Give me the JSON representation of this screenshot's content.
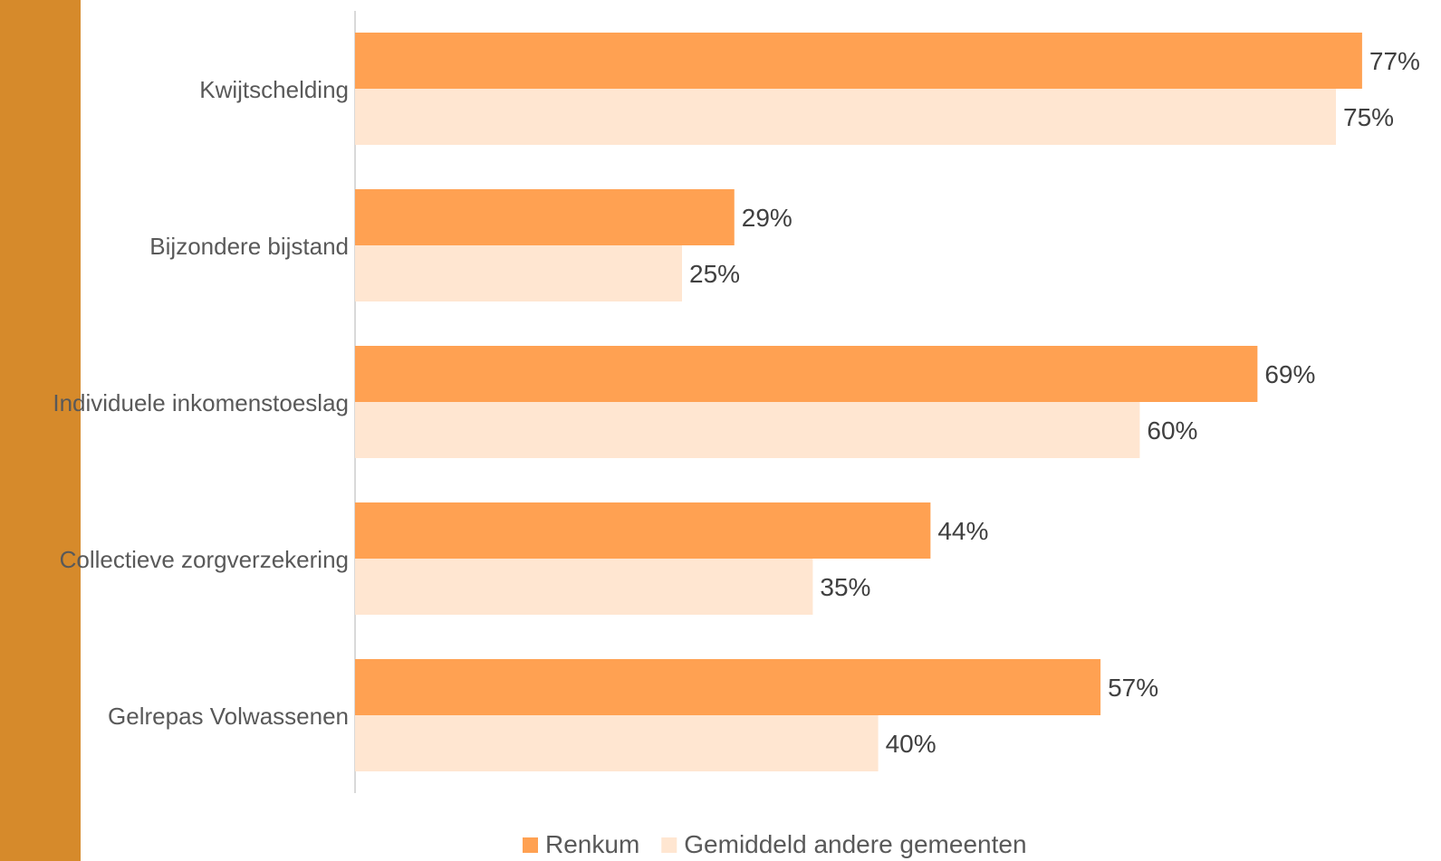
{
  "chart_data": {
    "type": "bar",
    "orientation": "horizontal",
    "categories": [
      "Kwijtschelding",
      "Bijzondere bijstand",
      "Individuele inkomenstoeslag",
      "Collectieve zorgverzekering",
      "Gelrepas Volwassenen"
    ],
    "series": [
      {
        "name": "Renkum",
        "values": [
          77,
          29,
          69,
          44,
          57
        ],
        "labels": [
          "77%",
          "29%",
          "69%",
          "44%",
          "57%"
        ],
        "color": "#FFA152"
      },
      {
        "name": "Gemiddeld andere gemeenten",
        "values": [
          75,
          25,
          60,
          35,
          40
        ],
        "labels": [
          "75%",
          "25%",
          "60%",
          "35%",
          "40%"
        ],
        "color": "#FFE6D1"
      }
    ],
    "xlim": [
      0,
      77
    ],
    "grid": false,
    "legend": "bottom"
  },
  "colors": {
    "side_bar": "#D68A2B",
    "axis": "#D9D9D9"
  }
}
